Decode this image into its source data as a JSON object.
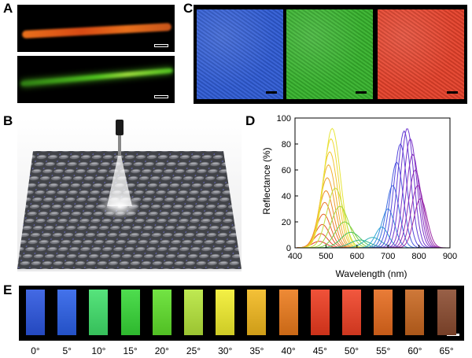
{
  "panels": {
    "a": "A",
    "b": "B",
    "c": "C",
    "d": "D",
    "e": "E"
  },
  "panel_a": {
    "fiber_colors": [
      "#e8701c",
      "#4fc21e"
    ]
  },
  "panel_c": {
    "tile_colors": [
      "#2f5bd4",
      "#36b22c",
      "#e5412a"
    ]
  },
  "chart_data": {
    "type": "line",
    "title": "",
    "xlabel": "Wavelength (nm)",
    "ylabel": "Reflectance (%)",
    "xlim": [
      400,
      900
    ],
    "ylim": [
      0,
      100
    ],
    "xticks": [
      400,
      500,
      600,
      700,
      800,
      900
    ],
    "yticks": [
      0,
      20,
      40,
      60,
      80,
      100
    ],
    "grid": false,
    "series": [
      {
        "peak_x": 478,
        "peak_y": 5,
        "width": 32,
        "color": "#e53b2a"
      },
      {
        "peak_x": 483,
        "peak_y": 11,
        "width": 32,
        "color": "#e4452a"
      },
      {
        "peak_x": 488,
        "peak_y": 18,
        "width": 33,
        "color": "#e3552b"
      },
      {
        "peak_x": 492,
        "peak_y": 26,
        "width": 33,
        "color": "#e6662b"
      },
      {
        "peak_x": 496,
        "peak_y": 35,
        "width": 34,
        "color": "#e8772c"
      },
      {
        "peak_x": 500,
        "peak_y": 44,
        "width": 34,
        "color": "#eb892d"
      },
      {
        "peak_x": 504,
        "peak_y": 54,
        "width": 35,
        "color": "#ee9c2e"
      },
      {
        "peak_x": 508,
        "peak_y": 64,
        "width": 35,
        "color": "#f0b030"
      },
      {
        "peak_x": 512,
        "peak_y": 74,
        "width": 36,
        "color": "#f1c532"
      },
      {
        "peak_x": 516,
        "peak_y": 84,
        "width": 36,
        "color": "#efd935"
      },
      {
        "peak_x": 520,
        "peak_y": 92,
        "width": 37,
        "color": "#e6e53a"
      },
      {
        "peak_x": 530,
        "peak_y": 46,
        "width": 38,
        "color": "#c7e03c"
      },
      {
        "peak_x": 545,
        "peak_y": 32,
        "width": 40,
        "color": "#a6d941"
      },
      {
        "peak_x": 560,
        "peak_y": 20,
        "width": 42,
        "color": "#7ccf45"
      },
      {
        "peak_x": 580,
        "peak_y": 12,
        "width": 44,
        "color": "#4cc35a"
      },
      {
        "peak_x": 610,
        "peak_y": 6,
        "width": 46,
        "color": "#37b88a"
      },
      {
        "peak_x": 650,
        "peak_y": 8,
        "width": 40,
        "color": "#32b3b8"
      },
      {
        "peak_x": 680,
        "peak_y": 16,
        "width": 30,
        "color": "#2fa8d6"
      },
      {
        "peak_x": 700,
        "peak_y": 30,
        "width": 30,
        "color": "#3b8fdf"
      },
      {
        "peak_x": 715,
        "peak_y": 48,
        "width": 30,
        "color": "#3f6fe0"
      },
      {
        "peak_x": 728,
        "peak_y": 66,
        "width": 30,
        "color": "#4a5ae0"
      },
      {
        "peak_x": 740,
        "peak_y": 80,
        "width": 30,
        "color": "#5548dc"
      },
      {
        "peak_x": 752,
        "peak_y": 90,
        "width": 30,
        "color": "#6240d6"
      },
      {
        "peak_x": 762,
        "peak_y": 92,
        "width": 30,
        "color": "#7038cf"
      },
      {
        "peak_x": 772,
        "peak_y": 84,
        "width": 30,
        "color": "#7c33c8"
      },
      {
        "peak_x": 780,
        "peak_y": 72,
        "width": 30,
        "color": "#8630bf"
      },
      {
        "peak_x": 788,
        "peak_y": 60,
        "width": 30,
        "color": "#8f2eb6"
      },
      {
        "peak_x": 796,
        "peak_y": 48,
        "width": 30,
        "color": "#962cae"
      },
      {
        "peak_x": 805,
        "peak_y": 38,
        "width": 30,
        "color": "#9c2aa5"
      }
    ]
  },
  "panel_e": {
    "angles": [
      "0°",
      "5°",
      "10°",
      "15°",
      "20°",
      "25°",
      "30°",
      "35°",
      "40°",
      "45°",
      "50°",
      "55°",
      "60°",
      "65°"
    ],
    "swatch_colors": [
      "#2a55e0",
      "#2a5fe8",
      "#3fe06a",
      "#36d836",
      "#5fe02a",
      "#b6e63a",
      "#f2ee2c",
      "#f2b81c",
      "#ec7a1a",
      "#ee3a1e",
      "#f04024",
      "#e66a1c",
      "#c8661e",
      "#8a4a2e"
    ]
  }
}
